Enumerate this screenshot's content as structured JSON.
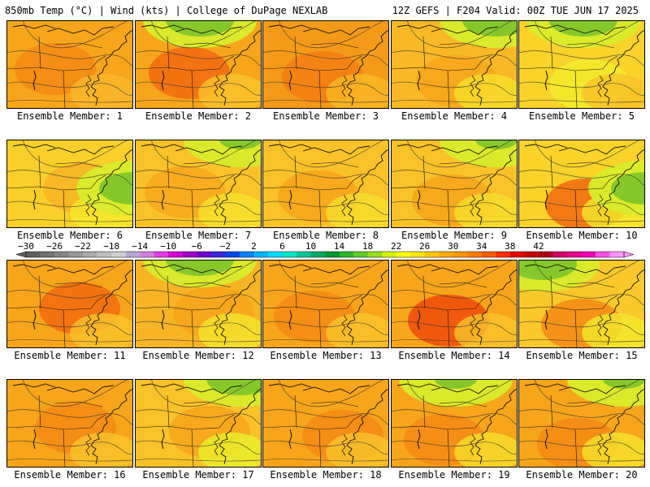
{
  "header": {
    "left_title": "850mb Temp (°C) | Wind (kts) | College of DuPage NEXLAB",
    "right_title": "12Z GEFS | F204 Valid: 00Z TUE JUN 17 2025"
  },
  "legend": {
    "tick_labels": [
      "−30",
      "−26",
      "−22",
      "−18",
      "−14",
      "−10",
      "−6",
      "−2",
      "2",
      "6",
      "10",
      "14",
      "18",
      "22",
      "26",
      "30",
      "34",
      "38",
      "42"
    ],
    "colors": [
      "#5f5f5f",
      "#727272",
      "#858585",
      "#989898",
      "#ababab",
      "#bdbdbd",
      "#cfcfcf",
      "#b9a7d4",
      "#d27ddc",
      "#e23ce8",
      "#d500d5",
      "#a000c8",
      "#6e00d2",
      "#3c28dc",
      "#0046e6",
      "#0082ff",
      "#00b4ff",
      "#00dcff",
      "#00e6c8",
      "#00c896",
      "#00aa64",
      "#009632",
      "#2db42d",
      "#64c828",
      "#96dc1e",
      "#d2f000",
      "#ffff00",
      "#ffe600",
      "#ffc800",
      "#ffaa00",
      "#ff9600",
      "#ff7d00",
      "#ff5a00",
      "#ff2d00",
      "#e60000",
      "#c80000",
      "#aa0014",
      "#d20064",
      "#e6008c",
      "#f000b4",
      "#ff50e6",
      "#ff96ff"
    ]
  },
  "members": [
    {
      "label": "Ensemble Member: 1"
    },
    {
      "label": "Ensemble Member: 2"
    },
    {
      "label": "Ensemble Member: 3"
    },
    {
      "label": "Ensemble Member: 4"
    },
    {
      "label": "Ensemble Member: 5"
    },
    {
      "label": "Ensemble Member: 6"
    },
    {
      "label": "Ensemble Member: 7"
    },
    {
      "label": "Ensemble Member: 8"
    },
    {
      "label": "Ensemble Member: 9"
    },
    {
      "label": "Ensemble Member: 10"
    },
    {
      "label": "Ensemble Member: 11"
    },
    {
      "label": "Ensemble Member: 12"
    },
    {
      "label": "Ensemble Member: 13"
    },
    {
      "label": "Ensemble Member: 14"
    },
    {
      "label": "Ensemble Member: 15"
    },
    {
      "label": "Ensemble Member: 16"
    },
    {
      "label": "Ensemble Member: 17"
    },
    {
      "label": "Ensemble Member: 18"
    },
    {
      "label": "Ensemble Member: 19"
    },
    {
      "label": "Ensemble Member: 20"
    }
  ]
}
